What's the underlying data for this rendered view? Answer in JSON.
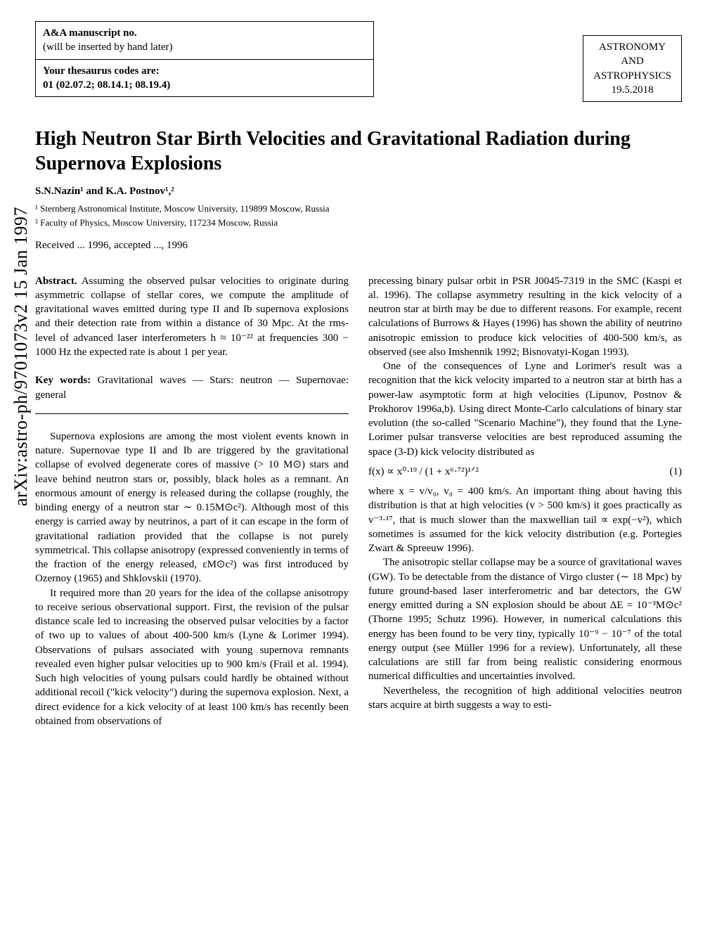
{
  "header": {
    "manuscript_label": "A&A manuscript no.",
    "manuscript_note": "(will be inserted by hand later)",
    "thesaurus_label": "Your thesaurus codes are:",
    "thesaurus_codes": "01 (02.07.2; 08.14.1; 08.19.4)",
    "journal_line1": "ASTRONOMY",
    "journal_line2": "AND",
    "journal_line3": "ASTROPHYSICS",
    "journal_date": "19.5.2018"
  },
  "arxiv": "arXiv:astro-ph/9701073v2  15 Jan 1997",
  "title": "High Neutron Star Birth Velocities and Gravitational Radiation during Supernova Explosions",
  "authors": "S.N.Nazin¹ and K.A. Postnov¹,²",
  "affil1": "¹ Sternberg Astronomical Institute, Moscow University, 119899 Moscow, Russia",
  "affil2": "² Faculty of Physics, Moscow University, 117234 Moscow, Russia",
  "received": "Received ... 1996, accepted ..., 1996",
  "abstract": {
    "head": "Abstract.",
    "text": " Assuming the observed pulsar velocities to originate during asymmetric collapse of stellar cores, we compute the amplitude of gravitational waves emitted during type II and Ib supernova explosions and their detection rate from within a distance of 30 Mpc. At the rms-level of advanced laser interferometers h ≈ 10⁻²² at frequencies 300 − 1000 Hz the expected rate is about 1 per year."
  },
  "keywords": {
    "head": "Key words:",
    "text": " Gravitational waves — Stars: neutron — Supernovae: general"
  },
  "left": {
    "p1": "Supernova explosions are among the most violent events known in nature. Supernovae type II and Ib are triggered by the gravitational collapse of evolved degenerate cores of massive (> 10 M⊙) stars and leave behind neutron stars or, possibly, black holes as a remnant. An enormous amount of energy is released during the collapse (roughly, the binding energy of a neutron star ∼ 0.15M⊙c²). Although most of this energy is carried away by neutrinos, a part of it can escape in the form of gravitational radiation provided that the collapse is not purely symmetrical. This collapse anisotropy (expressed conveniently in terms of the fraction of the energy released, εM⊙c²) was first introduced by Ozernoy (1965) and Shklovskii (1970).",
    "p2": "It required more than 20 years for the idea of the collapse anisotropy to receive serious observational support. First, the revision of the pulsar distance scale led to increasing the observed pulsar velocities by a factor of two up to values of about 400-500 km/s (Lyne & Lorimer 1994). Observations of pulsars associated with young supernova remnants revealed even higher pulsar velocities up to 900 km/s (Frail et al. 1994). Such high velocities of young pulsars could hardly be obtained without additional recoil (\"kick velocity\") during the supernova explosion. Next, a direct evidence for a kick velocity of at least 100 km/s has recently been obtained from observations of"
  },
  "right": {
    "p1": "precessing binary pulsar orbit in PSR J0045-7319 in the SMC (Kaspi et al. 1996). The collapse asymmetry resulting in the kick velocity of a neutron star at birth may be due to different reasons. For example, recent calculations of Burrows & Hayes (1996) has shown the ability of neutrino anisotropic emission to produce kick velocities of 400-500 km/s, as observed (see also Imshennik 1992; Bisnovatyi-Kogan 1993).",
    "p2": "One of the consequences of Lyne and Lorimer's result was a recognition that the kick velocity imparted to a neutron star at birth has a power-law asymptotic form at high velocities (Lipunov, Postnov & Prokhorov 1996a,b). Using direct Monte-Carlo calculations of binary star evolution (the so-called \"Scenario Machine\"), they found that the Lyne-Lorimer pulsar transverse velocities are best reproduced assuming the space (3-D) kick velocity distributed as",
    "eq1": "f(x) ∝ x⁰·¹⁹ / (1 + x⁶·⁷²)¹ᐟ²",
    "eq1_num": "(1)",
    "p3": "where x = v/v₀, v₀ = 400 km/s. An important thing about having this distribution is that at high velocities (v > 500 km/s) it goes practically as v⁻³·¹⁷, that is much slower than the maxwellian tail ∝ exp(−v²), which sometimes is assumed for the kick velocity distribution (e.g. Portegies Zwart & Spreeuw 1996).",
    "p4": "The anisotropic stellar collapse may be a source of gravitational waves (GW). To be detectable from the distance of Virgo cluster (∼ 18 Mpc) by future ground-based laser interferometric and bar detectors, the GW energy emitted during a SN explosion should be about ΔE = 10⁻³M⊙c² (Thorne 1995; Schutz 1996). However, in numerical calculations this energy has been found to be very tiny, typically 10⁻⁹ − 10⁻⁷ of the total energy output (see Müller 1996 for a review). Unfortunately, all these calculations are still far from being realistic considering enormous numerical difficulties and uncertainties involved.",
    "p5": "Nevertheless, the recognition of high additional velocities neutron stars acquire at birth suggests a way to esti-"
  }
}
